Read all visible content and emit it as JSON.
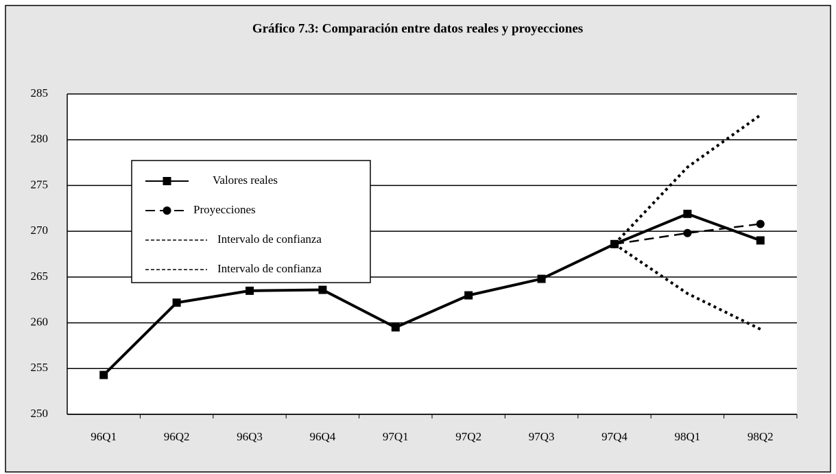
{
  "chart_data": {
    "type": "line",
    "title": "Gráfico 7.3: Comparación entre datos reales y proyecciones",
    "categories": [
      "96Q1",
      "96Q2",
      "96Q3",
      "96Q4",
      "97Q1",
      "97Q2",
      "97Q3",
      "97Q4",
      "98Q1",
      "98Q2"
    ],
    "series": [
      {
        "name": "Valores reales",
        "color": "#000000",
        "marker": "square",
        "dash": "solid",
        "values": [
          254.3,
          262.2,
          263.5,
          263.6,
          259.5,
          263.0,
          264.8,
          268.6,
          271.9,
          269.0
        ]
      },
      {
        "name": "Proyecciones",
        "color": "#000000",
        "marker": "circle",
        "dash": "dashed",
        "values": [
          null,
          null,
          null,
          null,
          null,
          null,
          null,
          268.6,
          269.8,
          270.8
        ]
      },
      {
        "name": "Intervalo de confianza",
        "color": "#000000",
        "marker": "none",
        "dash": "dotted",
        "values": [
          null,
          null,
          null,
          null,
          null,
          null,
          null,
          268.6,
          277.0,
          282.7
        ]
      },
      {
        "name": "Intervalo de confianza",
        "color": "#000000",
        "marker": "none",
        "dash": "dotted",
        "values": [
          null,
          null,
          null,
          null,
          null,
          null,
          null,
          268.6,
          263.2,
          259.3
        ]
      }
    ],
    "ylim": [
      250,
      285
    ],
    "yticks": [
      250,
      255,
      260,
      265,
      270,
      275,
      280,
      285
    ],
    "grid": true
  }
}
